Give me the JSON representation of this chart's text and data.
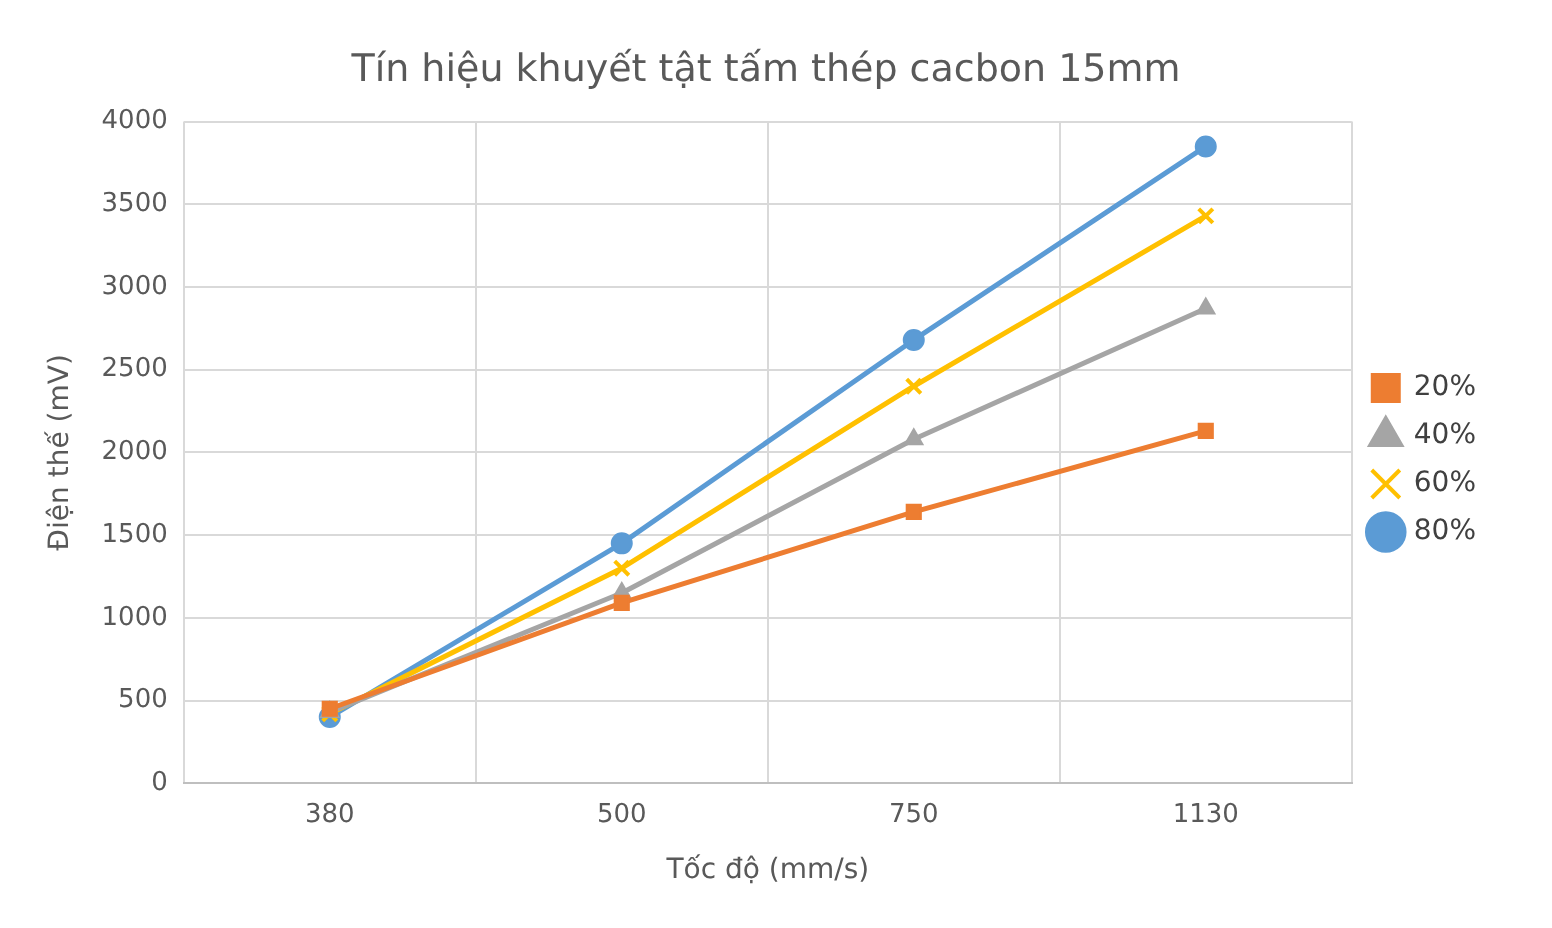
{
  "chart_data": {
    "type": "line",
    "title": "Tín hiệu khuyết tật tấm thép cacbon 15mm",
    "xlabel": "Tốc độ (mm/s)",
    "ylabel": "Điện thế (mV)",
    "categories": [
      "380",
      "500",
      "750",
      "1130"
    ],
    "series": [
      {
        "name": "20%",
        "color": "#ed7d31",
        "marker": "square",
        "values": [
          450,
          1090,
          1640,
          2130
        ]
      },
      {
        "name": "40%",
        "color": "#a5a5a5",
        "marker": "triangle",
        "values": [
          430,
          1150,
          2080,
          2870
        ]
      },
      {
        "name": "60%",
        "color": "#ffc000",
        "marker": "cross",
        "values": [
          420,
          1300,
          2400,
          3430
        ]
      },
      {
        "name": "80%",
        "color": "#5b9bd5",
        "marker": "circle",
        "values": [
          400,
          1450,
          2680,
          3850
        ]
      }
    ],
    "ylim": [
      0,
      4000
    ],
    "yticks": [
      0,
      500,
      1000,
      1500,
      2000,
      2500,
      3000,
      3500,
      4000
    ],
    "grid": true,
    "legend": "right"
  }
}
